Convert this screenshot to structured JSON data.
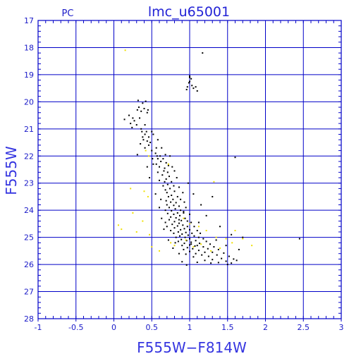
{
  "chart_data": {
    "type": "scatter",
    "title": "lmc_u65001",
    "subtitle": "PC",
    "xlabel": "F555W−F814W",
    "ylabel": "F555W",
    "xlim": [
      -1,
      3
    ],
    "ylim": [
      28,
      17
    ],
    "y_inverted": true,
    "grid": true,
    "x_ticks": [
      "-1",
      "-0.5",
      "0",
      "0.5",
      "1",
      "1.5",
      "2",
      "2.5",
      "3"
    ],
    "y_ticks": [
      "17",
      "18",
      "19",
      "20",
      "21",
      "22",
      "23",
      "24",
      "25",
      "26",
      "27",
      "28"
    ],
    "colors": {
      "axis": "#0000c8",
      "grid": "#0000c8",
      "text": "#2020d0",
      "stars_black": "#000000",
      "stars_yellow": "#f0e000"
    },
    "series": [
      {
        "color": "#000000",
        "points": [
          [
            1.17,
            18.2
          ],
          [
            1.0,
            19.05
          ],
          [
            1.0,
            19.1
          ],
          [
            1.02,
            19.15
          ],
          [
            1.0,
            19.25
          ],
          [
            0.99,
            19.3
          ],
          [
            1.03,
            19.4
          ],
          [
            0.97,
            19.45
          ],
          [
            1.05,
            19.5
          ],
          [
            1.08,
            19.45
          ],
          [
            0.96,
            19.55
          ],
          [
            1.1,
            19.6
          ],
          [
            0.32,
            19.95
          ],
          [
            0.38,
            20.05
          ],
          [
            0.42,
            19.98
          ],
          [
            0.33,
            20.2
          ],
          [
            0.31,
            20.3
          ],
          [
            0.4,
            20.25
          ],
          [
            0.45,
            20.3
          ],
          [
            0.36,
            20.35
          ],
          [
            0.44,
            20.4
          ],
          [
            0.2,
            20.5
          ],
          [
            0.25,
            20.6
          ],
          [
            0.34,
            20.6
          ],
          [
            0.27,
            20.7
          ],
          [
            0.14,
            20.65
          ],
          [
            0.22,
            20.8
          ],
          [
            0.3,
            20.85
          ],
          [
            0.41,
            20.85
          ],
          [
            0.24,
            20.95
          ],
          [
            0.36,
            21.0
          ],
          [
            0.37,
            21.1
          ],
          [
            0.43,
            21.1
          ],
          [
            0.41,
            21.2
          ],
          [
            0.38,
            21.3
          ],
          [
            0.46,
            21.3
          ],
          [
            0.5,
            21.1
          ],
          [
            0.52,
            21.2
          ],
          [
            0.39,
            21.4
          ],
          [
            0.44,
            21.45
          ],
          [
            0.48,
            21.5
          ],
          [
            0.35,
            21.55
          ],
          [
            0.46,
            21.6
          ],
          [
            0.41,
            21.7
          ],
          [
            0.5,
            21.8
          ],
          [
            0.56,
            21.7
          ],
          [
            0.63,
            21.7
          ],
          [
            0.55,
            21.9
          ],
          [
            0.31,
            21.95
          ],
          [
            0.57,
            22.0
          ],
          [
            0.61,
            22.0
          ],
          [
            0.68,
            21.95
          ],
          [
            0.51,
            22.1
          ],
          [
            0.58,
            22.1
          ],
          [
            0.65,
            22.1
          ],
          [
            0.74,
            22.0
          ],
          [
            0.62,
            22.2
          ],
          [
            0.56,
            22.3
          ],
          [
            0.69,
            22.25
          ],
          [
            0.72,
            22.35
          ],
          [
            0.6,
            22.4
          ],
          [
            0.67,
            22.45
          ],
          [
            0.77,
            22.4
          ],
          [
            0.44,
            22.4
          ],
          [
            0.66,
            22.55
          ],
          [
            0.71,
            22.6
          ],
          [
            0.58,
            22.6
          ],
          [
            0.8,
            22.55
          ],
          [
            0.64,
            22.7
          ],
          [
            0.73,
            22.75
          ],
          [
            0.69,
            22.85
          ],
          [
            0.83,
            22.8
          ],
          [
            0.6,
            22.9
          ],
          [
            0.67,
            22.95
          ],
          [
            0.76,
            22.95
          ],
          [
            0.71,
            23.05
          ],
          [
            0.65,
            23.1
          ],
          [
            0.79,
            23.1
          ],
          [
            0.74,
            23.2
          ],
          [
            0.86,
            23.15
          ],
          [
            0.68,
            23.25
          ],
          [
            0.7,
            23.35
          ],
          [
            0.8,
            23.3
          ],
          [
            0.76,
            23.45
          ],
          [
            0.91,
            23.35
          ],
          [
            0.72,
            23.5
          ],
          [
            0.84,
            23.5
          ],
          [
            0.78,
            23.6
          ],
          [
            0.88,
            23.6
          ],
          [
            0.69,
            23.65
          ],
          [
            0.75,
            23.7
          ],
          [
            0.82,
            23.72
          ],
          [
            0.93,
            23.7
          ],
          [
            0.7,
            23.8
          ],
          [
            0.79,
            23.82
          ],
          [
            0.86,
            23.85
          ],
          [
            0.73,
            23.9
          ],
          [
            0.95,
            23.9
          ],
          [
            0.81,
            23.95
          ],
          [
            0.68,
            24.0
          ],
          [
            0.76,
            24.02
          ],
          [
            0.88,
            24.0
          ],
          [
            0.84,
            24.1
          ],
          [
            0.92,
            24.1
          ],
          [
            0.71,
            24.12
          ],
          [
            0.79,
            24.15
          ],
          [
            1.0,
            24.15
          ],
          [
            0.87,
            24.2
          ],
          [
            0.75,
            24.25
          ],
          [
            0.82,
            24.28
          ],
          [
            0.94,
            24.3
          ],
          [
            0.73,
            24.35
          ],
          [
            0.89,
            24.38
          ],
          [
            0.97,
            24.4
          ],
          [
            0.8,
            24.42
          ],
          [
            0.68,
            24.45
          ],
          [
            0.86,
            24.48
          ],
          [
            1.02,
            24.45
          ],
          [
            0.77,
            24.52
          ],
          [
            0.91,
            24.55
          ],
          [
            0.84,
            24.58
          ],
          [
            0.97,
            24.6
          ],
          [
            0.7,
            24.6
          ],
          [
            1.06,
            24.6
          ],
          [
            0.8,
            24.65
          ],
          [
            0.93,
            24.68
          ],
          [
            0.88,
            24.72
          ],
          [
            1.0,
            24.72
          ],
          [
            0.75,
            24.75
          ],
          [
            1.1,
            24.75
          ],
          [
            0.85,
            24.8
          ],
          [
            0.95,
            24.82
          ],
          [
            1.03,
            24.85
          ],
          [
            0.79,
            24.85
          ],
          [
            0.9,
            24.88
          ],
          [
            1.14,
            24.85
          ],
          [
            0.98,
            24.92
          ],
          [
            0.87,
            24.95
          ],
          [
            1.06,
            24.95
          ],
          [
            0.82,
            25.0
          ],
          [
            0.94,
            25.0
          ],
          [
            1.12,
            25.0
          ],
          [
            1.0,
            25.05
          ],
          [
            0.89,
            25.08
          ],
          [
            1.18,
            25.05
          ],
          [
            0.96,
            25.12
          ],
          [
            1.08,
            25.12
          ],
          [
            0.85,
            25.15
          ],
          [
            1.02,
            25.18
          ],
          [
            1.22,
            25.15
          ],
          [
            0.93,
            25.22
          ],
          [
            1.13,
            25.22
          ],
          [
            1.0,
            25.28
          ],
          [
            1.27,
            25.25
          ],
          [
            0.9,
            25.3
          ],
          [
            1.07,
            25.32
          ],
          [
            1.18,
            25.35
          ],
          [
            0.97,
            25.38
          ],
          [
            1.32,
            25.35
          ],
          [
            1.04,
            25.42
          ],
          [
            1.24,
            25.42
          ],
          [
            0.92,
            25.45
          ],
          [
            1.12,
            25.48
          ],
          [
            1.38,
            25.45
          ],
          [
            1.0,
            25.52
          ],
          [
            1.2,
            25.55
          ],
          [
            1.3,
            25.55
          ],
          [
            1.08,
            25.6
          ],
          [
            1.45,
            25.58
          ],
          [
            0.95,
            25.62
          ],
          [
            1.16,
            25.65
          ],
          [
            1.36,
            25.65
          ],
          [
            1.25,
            25.7
          ],
          [
            1.52,
            25.7
          ],
          [
            1.05,
            25.72
          ],
          [
            1.42,
            25.78
          ],
          [
            1.3,
            25.82
          ],
          [
            1.58,
            25.8
          ],
          [
            1.2,
            25.85
          ],
          [
            1.48,
            25.88
          ],
          [
            0.9,
            25.9
          ],
          [
            1.1,
            25.92
          ],
          [
            1.38,
            25.93
          ],
          [
            1.62,
            25.85
          ],
          [
            1.28,
            25.95
          ],
          [
            1.55,
            25.95
          ],
          [
            0.96,
            26.02
          ],
          [
            1.5,
            26.0
          ],
          [
            0.52,
            22.3
          ],
          [
            0.47,
            22.8
          ],
          [
            0.55,
            23.4
          ],
          [
            0.6,
            23.9
          ],
          [
            0.63,
            24.3
          ],
          [
            0.66,
            24.7
          ],
          [
            0.72,
            25.1
          ],
          [
            0.78,
            25.4
          ],
          [
            0.86,
            25.6
          ],
          [
            1.3,
            23.5
          ],
          [
            1.15,
            23.8
          ],
          [
            1.22,
            24.2
          ],
          [
            1.4,
            24.6
          ],
          [
            1.55,
            24.9
          ],
          [
            1.7,
            25.0
          ],
          [
            1.65,
            25.45
          ],
          [
            1.12,
            24.45
          ],
          [
            1.35,
            25.1
          ],
          [
            1.48,
            25.3
          ],
          [
            0.98,
            23.0
          ],
          [
            1.05,
            23.4
          ],
          [
            0.58,
            21.4
          ],
          [
            0.62,
            23.6
          ],
          [
            1.6,
            22.05
          ],
          [
            2.45,
            25.05
          ],
          [
            0.86,
            24.35
          ],
          [
            0.92,
            24.05
          ],
          [
            1.02,
            25.25
          ],
          [
            1.1,
            25.3
          ],
          [
            0.81,
            25.2
          ]
        ]
      },
      {
        "color": "#f0e000",
        "points": [
          [
            0.15,
            18.1
          ],
          [
            0.42,
            21.8
          ],
          [
            0.46,
            22.0
          ],
          [
            0.72,
            22.3
          ],
          [
            1.32,
            22.95
          ],
          [
            0.22,
            23.2
          ],
          [
            0.4,
            23.3
          ],
          [
            0.45,
            23.5
          ],
          [
            0.25,
            24.1
          ],
          [
            0.38,
            24.4
          ],
          [
            0.06,
            24.55
          ],
          [
            0.1,
            24.7
          ],
          [
            0.3,
            24.8
          ],
          [
            0.47,
            24.9
          ],
          [
            0.92,
            24.3
          ],
          [
            1.0,
            24.5
          ],
          [
            1.12,
            24.6
          ],
          [
            1.22,
            24.75
          ],
          [
            1.35,
            25.0
          ],
          [
            1.48,
            25.05
          ],
          [
            1.56,
            25.2
          ],
          [
            1.7,
            25.05
          ],
          [
            1.82,
            25.3
          ],
          [
            0.75,
            25.2
          ],
          [
            0.8,
            25.3
          ],
          [
            0.5,
            25.35
          ],
          [
            0.6,
            25.5
          ],
          [
            0.95,
            25.1
          ],
          [
            1.05,
            25.35
          ],
          [
            1.15,
            25.25
          ],
          [
            1.28,
            25.5
          ],
          [
            1.4,
            25.4
          ],
          [
            1.6,
            24.75
          ]
        ]
      }
    ]
  }
}
